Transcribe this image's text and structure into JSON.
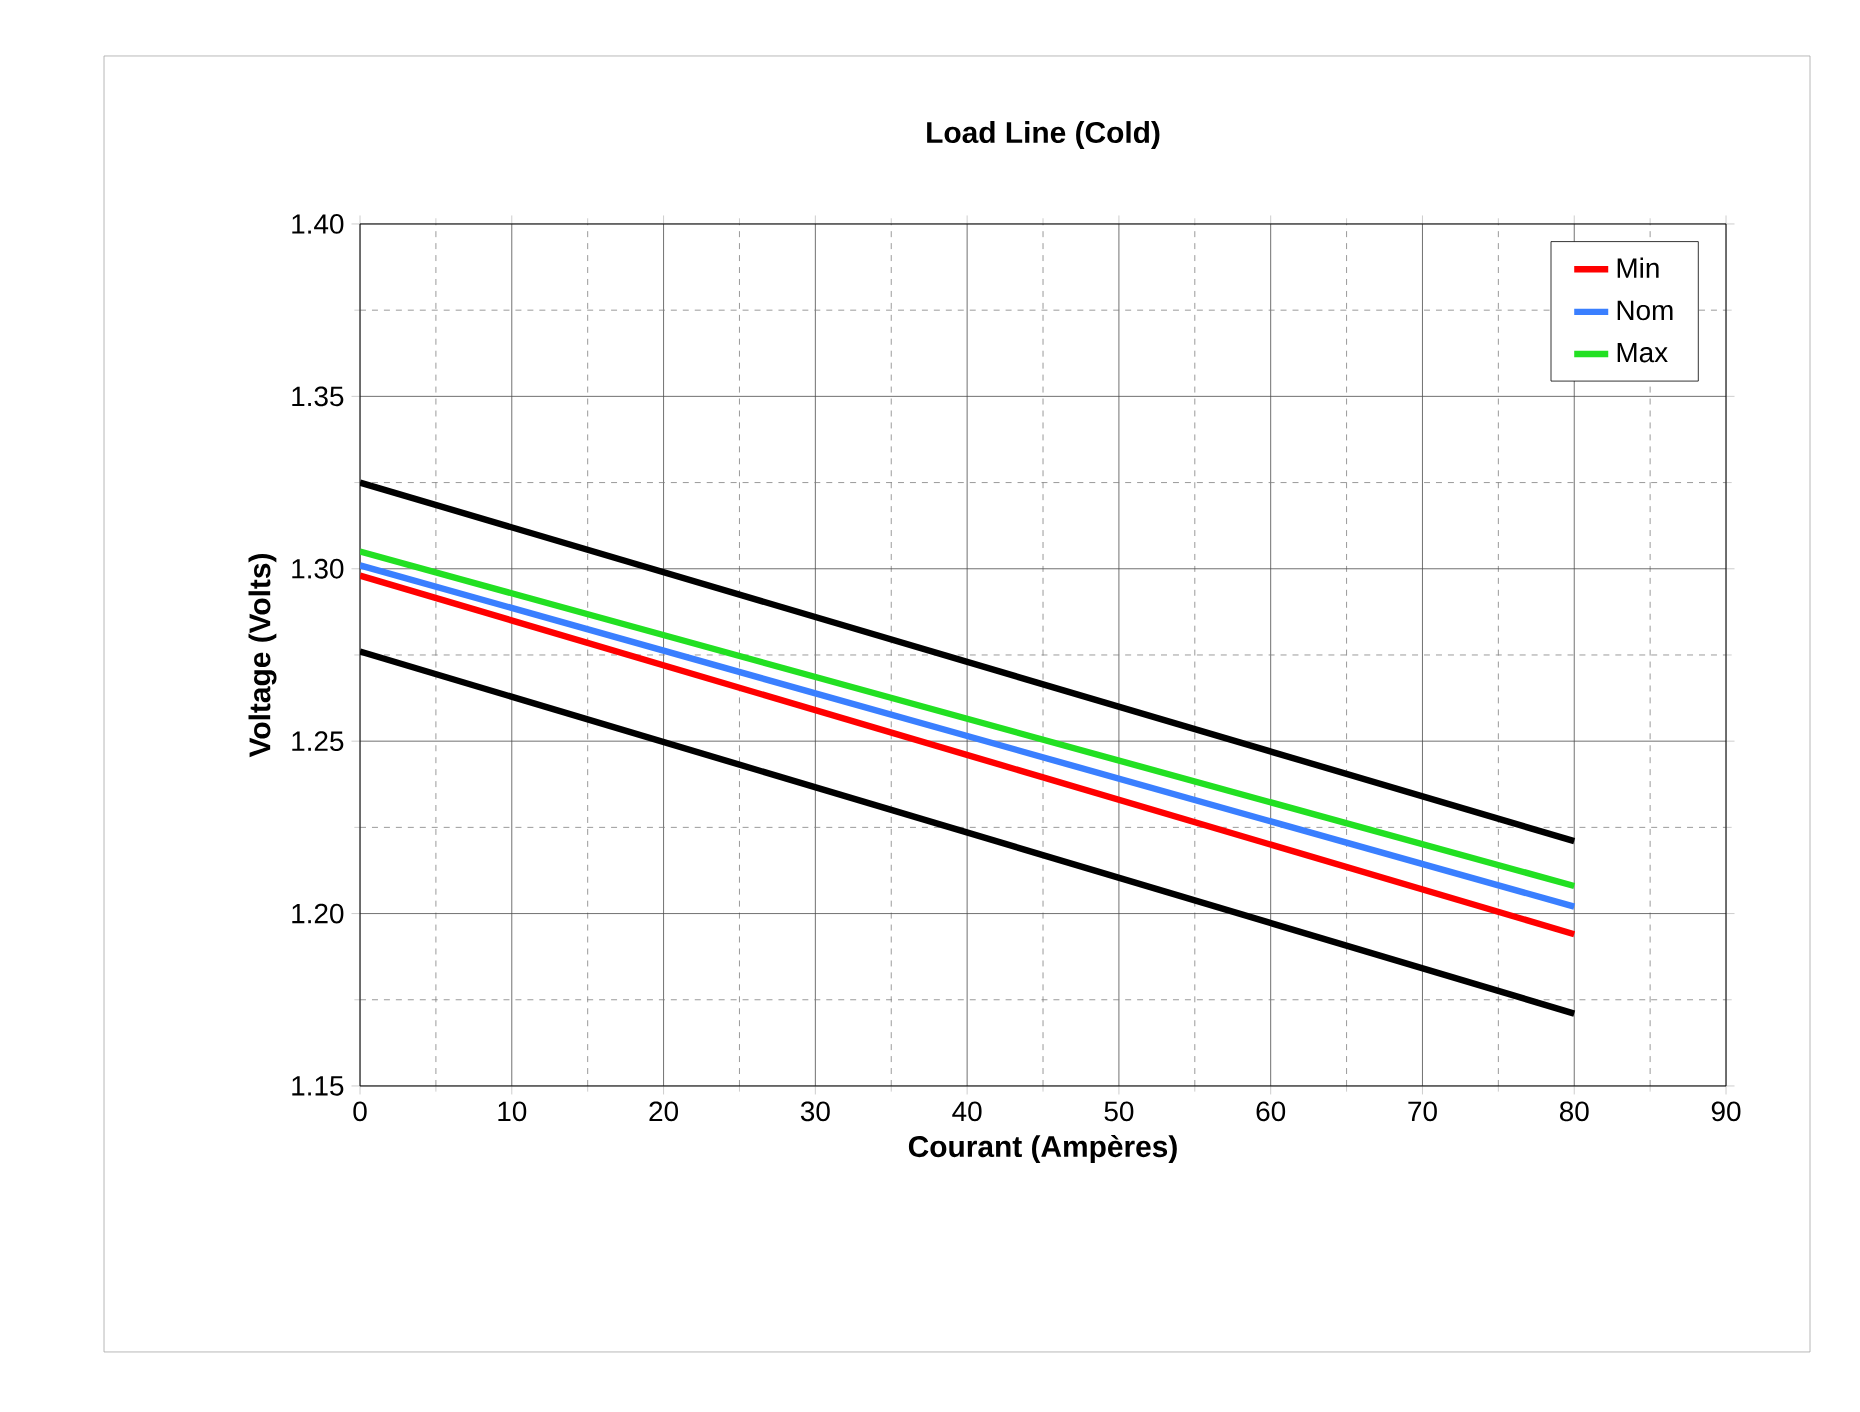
{
  "chart_data": {
    "type": "line",
    "title": "Load Line (Cold)",
    "xlabel": "Courant (Ampères)",
    "ylabel": "Voltage (Volts)",
    "x": [
      0,
      80
    ],
    "series": [
      {
        "color": "#000000",
        "values": [
          1.325,
          1.221
        ]
      },
      {
        "color": "#000000",
        "values": [
          1.276,
          1.171
        ]
      },
      {
        "name": "Min",
        "color": "#ff0000",
        "values": [
          1.298,
          1.194
        ]
      },
      {
        "name": "Nom",
        "color": "#3a7fff",
        "values": [
          1.301,
          1.202
        ]
      },
      {
        "name": "Max",
        "color": "#22e022",
        "values": [
          1.305,
          1.208
        ]
      }
    ],
    "xlim": [
      0,
      90
    ],
    "ylim": [
      1.15,
      1.4
    ],
    "xticks": [
      0,
      10,
      20,
      30,
      40,
      50,
      60,
      70,
      80,
      90
    ],
    "yticks": [
      {
        "value": 1.15,
        "label": "1.15"
      },
      {
        "value": 1.2,
        "label": "1.20"
      },
      {
        "value": 1.25,
        "label": "1.25"
      },
      {
        "value": 1.3,
        "label": "1.30"
      },
      {
        "value": 1.35,
        "label": "1.35"
      },
      {
        "value": 1.4,
        "label": "1.40"
      }
    ],
    "grid": true,
    "legend": "top right",
    "marker": "none",
    "line_style": "solid"
  }
}
